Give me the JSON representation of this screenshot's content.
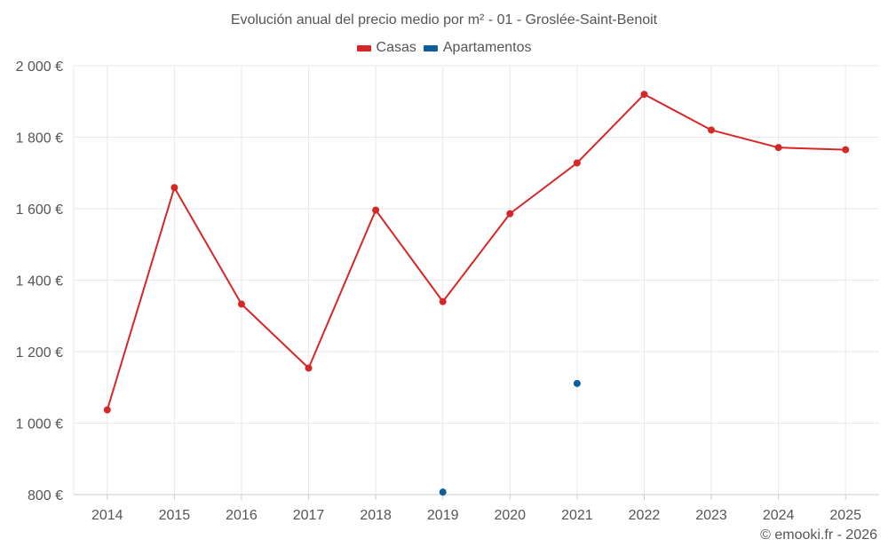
{
  "chart_data": {
    "type": "line",
    "title": "Evolución anual del precio medio por m² - 01 - Groslée-Saint-Benoit",
    "categories": [
      "2014",
      "2015",
      "2016",
      "2017",
      "2018",
      "2019",
      "2020",
      "2021",
      "2022",
      "2023",
      "2024",
      "2025"
    ],
    "series": [
      {
        "name": "Casas",
        "color": "#d62728",
        "values": [
          1037,
          1659,
          1333,
          1154,
          1596,
          1340,
          1586,
          1728,
          1920,
          1820,
          1771,
          1765
        ]
      },
      {
        "name": "Apartamentos",
        "color": "#0f5e97",
        "values": [
          null,
          null,
          null,
          null,
          null,
          807,
          null,
          1111,
          null,
          null,
          null,
          null
        ]
      }
    ],
    "yticks": [
      800,
      1000,
      1200,
      1400,
      1600,
      1800,
      2000
    ],
    "ytick_labels": [
      "800 €",
      "1 000 €",
      "1 200 €",
      "1 400 €",
      "1 600 €",
      "1 800 €",
      "2 000 €"
    ],
    "ylim": [
      800,
      2000
    ],
    "xlabel": "",
    "ylabel": "",
    "grid": true,
    "legend_position": "top-center"
  },
  "credit": "© emooki.fr - 2026"
}
